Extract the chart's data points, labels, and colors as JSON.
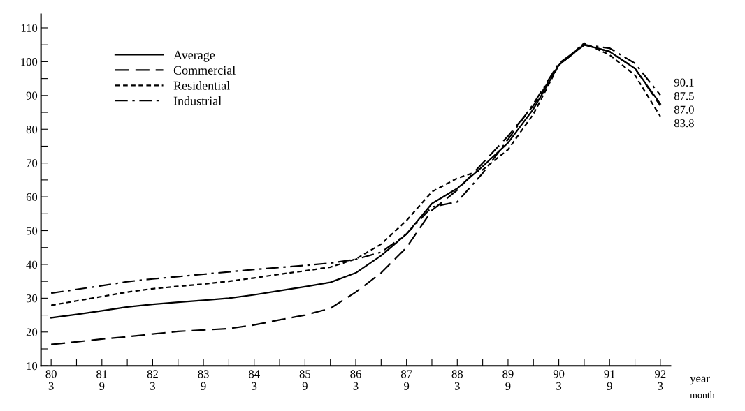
{
  "chart_data": {
    "type": "line",
    "categories": [
      "80\n3",
      null,
      "81\n9",
      null,
      "82\n3",
      null,
      "83\n9",
      null,
      "84\n3",
      null,
      "85\n9",
      null,
      "86\n3",
      null,
      "87\n9",
      null,
      "88\n3",
      null,
      "89\n9",
      null,
      "90\n3",
      null,
      "91\n9",
      null,
      "92\n3"
    ],
    "series": [
      {
        "name": "Average",
        "color": "#000000",
        "line_style": "solid",
        "values": [
          24.2,
          25.2,
          26.3,
          27.4,
          28.2,
          28.8,
          29.4,
          30.0,
          31.0,
          32.2,
          33.4,
          34.7,
          37.5,
          42.6,
          49,
          58,
          62.5,
          69,
          76,
          86,
          99,
          105,
          103,
          98,
          87.5
        ],
        "value_labels": [
          null,
          null,
          null,
          null,
          null,
          null,
          null,
          null,
          null,
          null,
          null,
          null,
          null,
          null,
          null,
          null,
          null,
          null,
          null,
          null,
          null,
          null,
          null,
          null,
          "87.5"
        ]
      },
      {
        "name": "Commercial",
        "color": "#000000",
        "line_style": "dashed",
        "values": [
          16.3,
          17.1,
          17.9,
          18.6,
          19.4,
          20.2,
          20.6,
          21.0,
          22.1,
          23.6,
          25.0,
          27.0,
          31.8,
          37.5,
          45,
          56,
          62,
          70,
          78,
          87,
          99,
          105,
          103,
          98,
          87.0
        ],
        "value_labels": [
          null,
          null,
          null,
          null,
          null,
          null,
          null,
          null,
          null,
          null,
          null,
          null,
          null,
          null,
          null,
          null,
          null,
          null,
          null,
          null,
          null,
          null,
          null,
          null,
          "87.0"
        ]
      },
      {
        "name": "Residential",
        "color": "#000000",
        "line_style": "dotted",
        "values": [
          27.9,
          29.2,
          30.5,
          31.8,
          32.8,
          33.5,
          34.2,
          35.0,
          36.0,
          37.1,
          38.1,
          39.2,
          41.6,
          46,
          53,
          61.5,
          65.5,
          68,
          74,
          84.5,
          99,
          105.5,
          102,
          96,
          83.8
        ],
        "value_labels": [
          null,
          null,
          null,
          null,
          null,
          null,
          null,
          null,
          null,
          null,
          null,
          null,
          null,
          null,
          null,
          null,
          null,
          null,
          null,
          null,
          null,
          null,
          null,
          null,
          "83.8"
        ]
      },
      {
        "name": "Industrial",
        "color": "#000000",
        "line_style": "dashdot",
        "values": [
          31.5,
          32.6,
          33.7,
          34.9,
          35.7,
          36.4,
          37.1,
          37.8,
          38.5,
          39.1,
          39.7,
          40.4,
          41.5,
          43.6,
          49,
          57,
          58.5,
          67,
          77,
          87.5,
          99.5,
          105,
          104,
          99.5,
          90.1
        ],
        "value_labels": [
          null,
          null,
          null,
          null,
          null,
          null,
          null,
          null,
          null,
          null,
          null,
          null,
          null,
          null,
          null,
          null,
          null,
          null,
          null,
          null,
          null,
          null,
          null,
          null,
          "90.1"
        ]
      }
    ],
    "ylim": [
      10,
      114
    ],
    "yticks": [
      10,
      {
        "value": 15,
        "label": null
      },
      20,
      {
        "value": 25,
        "label": null
      },
      30,
      {
        "value": 35,
        "label": null
      },
      40,
      {
        "value": 45,
        "label": null
      },
      50,
      {
        "value": 55,
        "label": null
      },
      60,
      {
        "value": 65,
        "label": null
      },
      70,
      {
        "value": 75,
        "label": null
      },
      80,
      {
        "value": 85,
        "label": null
      },
      90,
      {
        "value": 95,
        "label": null
      },
      100,
      {
        "value": 105,
        "label": null
      },
      110
    ],
    "annotations": [
      "year",
      "month"
    ],
    "legend": "top left",
    "grid": false,
    "marker": "none"
  }
}
